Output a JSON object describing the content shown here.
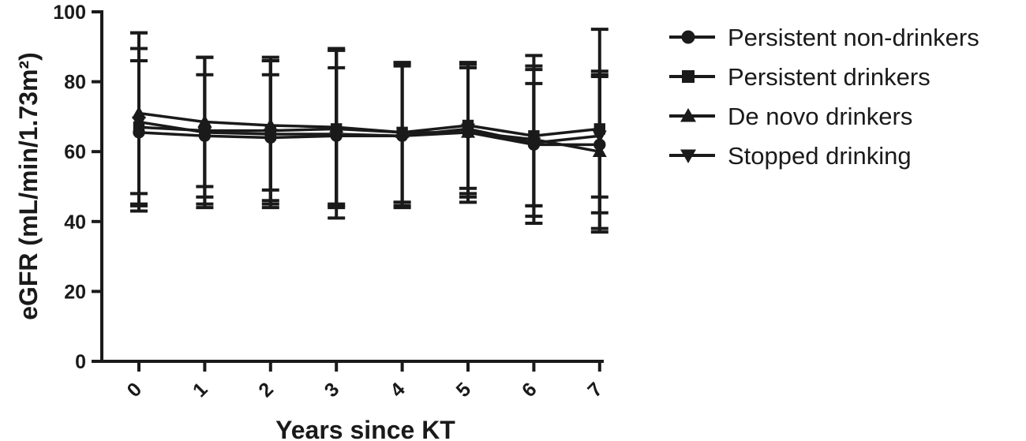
{
  "chart_data": {
    "type": "line",
    "x": [
      0,
      1,
      2,
      3,
      4,
      5,
      6,
      7
    ],
    "xlabel": "Years since KT",
    "ylabel": "eGFR (mL/min/1.73m²)",
    "ylim": [
      0,
      100
    ],
    "yticks": [
      0,
      20,
      40,
      60,
      80,
      100
    ],
    "grid": false,
    "legend_position": "right",
    "color": "#1a1a1a",
    "series": [
      {
        "name": "Persistent non-drinkers",
        "marker": "circle",
        "values": [
          65.5,
          64.5,
          64.0,
          64.5,
          64.5,
          65.5,
          62.0,
          62.0
        ],
        "error": [
          20.5,
          17.5,
          18.0,
          19.5,
          20.0,
          18.5,
          17.5,
          19.5
        ]
      },
      {
        "name": "Persistent drinkers",
        "marker": "square",
        "values": [
          67.0,
          66.0,
          66.0,
          66.5,
          65.5,
          67.5,
          64.5,
          66.5
        ],
        "error": [
          22.5,
          21.0,
          21.0,
          22.5,
          20.0,
          18.0,
          20.0,
          28.5
        ]
      },
      {
        "name": "De novo drinkers",
        "marker": "triangle-up",
        "values": [
          71.0,
          68.5,
          67.5,
          67.0,
          65.5,
          65.5,
          63.5,
          60.0
        ],
        "error": [
          23.0,
          18.5,
          18.5,
          22.5,
          20.0,
          20.0,
          24.0,
          23.0
        ]
      },
      {
        "name": "Stopped drinking",
        "marker": "triangle-down",
        "values": [
          68.5,
          65.5,
          65.0,
          65.0,
          64.5,
          66.5,
          62.5,
          64.5
        ],
        "error": [
          25.5,
          21.5,
          21.0,
          24.0,
          20.5,
          18.5,
          21.0,
          17.5
        ]
      }
    ]
  }
}
